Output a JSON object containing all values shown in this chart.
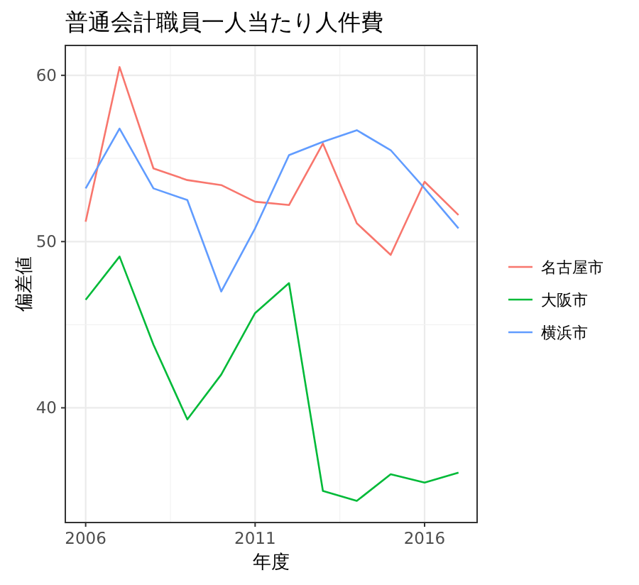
{
  "chart_data": {
    "type": "line",
    "title": "普通会計職員一人当たり人件費",
    "xlabel": "年度",
    "ylabel": "偏差値",
    "x": [
      2006,
      2007,
      2008,
      2009,
      2010,
      2011,
      2012,
      2013,
      2014,
      2015,
      2016,
      2017
    ],
    "series": [
      {
        "name": "名古屋市",
        "color": "#f8766d",
        "values": [
          51.2,
          60.5,
          54.4,
          53.7,
          53.4,
          52.4,
          52.2,
          55.9,
          51.1,
          49.2,
          53.6,
          51.6
        ]
      },
      {
        "name": "大阪市",
        "color": "#00ba38",
        "values": [
          46.5,
          49.1,
          43.8,
          39.3,
          42.0,
          45.7,
          47.5,
          35.0,
          34.4,
          36.0,
          35.5,
          36.1
        ]
      },
      {
        "name": "横浜市",
        "color": "#619cff",
        "values": [
          53.2,
          56.8,
          53.2,
          52.5,
          47.0,
          50.8,
          55.2,
          56.0,
          56.7,
          55.5,
          53.2,
          50.8
        ]
      }
    ],
    "xlim": [
      2005.4,
      2017.55
    ],
    "ylim": [
      33.1,
      61.8
    ],
    "xticks": [
      2006,
      2011,
      2016
    ],
    "yticks": [
      40,
      50,
      60
    ],
    "grid": true,
    "legend": "right",
    "marker": "none",
    "line_style": "solid"
  }
}
